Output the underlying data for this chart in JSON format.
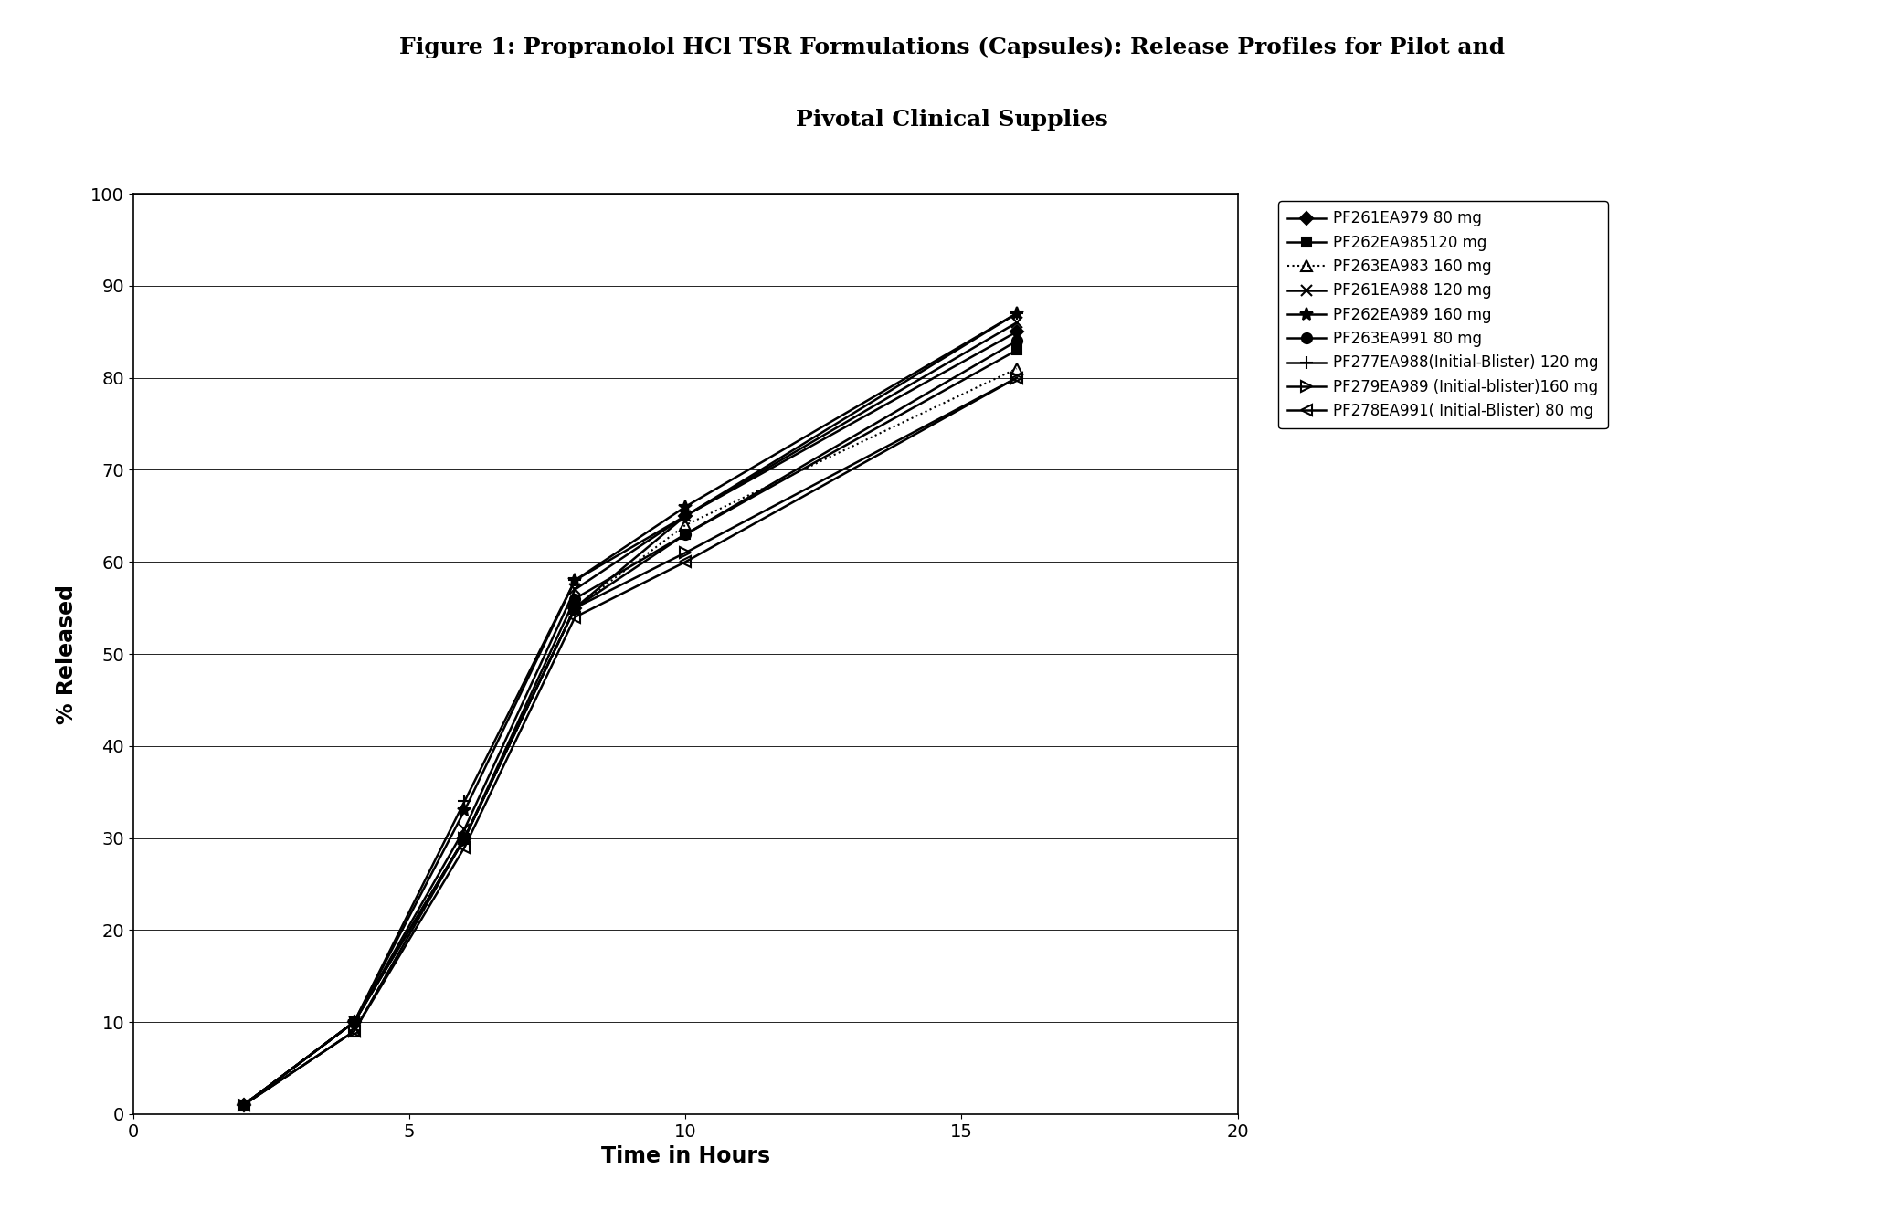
{
  "title_line1": "Figure 1: Propranolol HCl TSR Formulations (Capsules): Release Profiles for Pilot and",
  "title_line2": "Pivotal Clinical Supplies",
  "xlabel": "Time in Hours",
  "ylabel": "% Released",
  "xlim": [
    0,
    20
  ],
  "ylim": [
    0,
    100
  ],
  "xticks": [
    0,
    5,
    10,
    15,
    20
  ],
  "yticks": [
    0,
    10,
    20,
    30,
    40,
    50,
    60,
    70,
    80,
    90,
    100
  ],
  "background_color": "#ffffff",
  "series": [
    {
      "label": "PF261EA979 80 mg",
      "x": [
        2,
        4,
        6,
        8,
        10,
        16
      ],
      "y": [
        1,
        10,
        30,
        55,
        65,
        85
      ],
      "color": "#000000",
      "linestyle": "-",
      "marker": "D",
      "markersize": 7,
      "linewidth": 1.8,
      "zorder": 5
    },
    {
      "label": "PF262EA985120 mg",
      "x": [
        2,
        4,
        6,
        8,
        10,
        16
      ],
      "y": [
        1,
        10,
        30,
        55,
        63,
        83
      ],
      "color": "#000000",
      "linestyle": "-",
      "marker": "s",
      "markersize": 7,
      "linewidth": 1.8,
      "zorder": 5
    },
    {
      "label": "PF263EA983 160 mg",
      "x": [
        2,
        4,
        6,
        8,
        10,
        16
      ],
      "y": [
        1,
        9,
        30,
        55,
        64,
        81
      ],
      "color": "#000000",
      "linestyle": ":",
      "marker": "^",
      "markersize": 9,
      "linewidth": 1.5,
      "zorder": 4
    },
    {
      "label": "PF261EA988 120 mg",
      "x": [
        2,
        4,
        6,
        8,
        10,
        16
      ],
      "y": [
        1,
        10,
        31,
        57,
        65,
        86
      ],
      "color": "#000000",
      "linestyle": "-",
      "marker": "x",
      "markersize": 9,
      "linewidth": 1.8,
      "zorder": 5
    },
    {
      "label": "PF262EA989 160 mg",
      "x": [
        2,
        4,
        6,
        8,
        10,
        16
      ],
      "y": [
        1,
        10,
        33,
        58,
        66,
        87
      ],
      "color": "#000000",
      "linestyle": "-",
      "marker": "*",
      "markersize": 10,
      "linewidth": 1.8,
      "zorder": 5
    },
    {
      "label": "PF263EA991 80 mg",
      "x": [
        2,
        4,
        6,
        8,
        10,
        16
      ],
      "y": [
        1,
        10,
        30,
        56,
        63,
        84
      ],
      "color": "#000000",
      "linestyle": "-",
      "marker": "o",
      "markersize": 8,
      "linewidth": 1.8,
      "zorder": 5
    },
    {
      "label": "PF277EA988(Initial-Blister) 120 mg",
      "x": [
        2,
        4,
        6,
        8,
        10,
        16
      ],
      "y": [
        1,
        10,
        34,
        58,
        65,
        87
      ],
      "color": "#000000",
      "linestyle": "-",
      "marker": "+",
      "markersize": 10,
      "linewidth": 1.8,
      "zorder": 5
    },
    {
      "label": "PF279EA989 (Initial-blister)160 mg",
      "x": [
        2,
        4,
        6,
        8,
        10,
        16
      ],
      "y": [
        1,
        9,
        30,
        55,
        61,
        80
      ],
      "color": "#000000",
      "linestyle": "-",
      "marker": ">",
      "markersize": 8,
      "linewidth": 1.8,
      "zorder": 4
    },
    {
      "label": "PF278EA991( Initial-Blister) 80 mg",
      "x": [
        2,
        4,
        6,
        8,
        10,
        16
      ],
      "y": [
        1,
        9,
        29,
        54,
        60,
        80
      ],
      "color": "#000000",
      "linestyle": "-",
      "marker": "<",
      "markersize": 8,
      "linewidth": 1.8,
      "zorder": 4
    }
  ],
  "legend_fontsize": 12,
  "title_fontsize": 18,
  "axis_label_fontsize": 17,
  "tick_fontsize": 14
}
